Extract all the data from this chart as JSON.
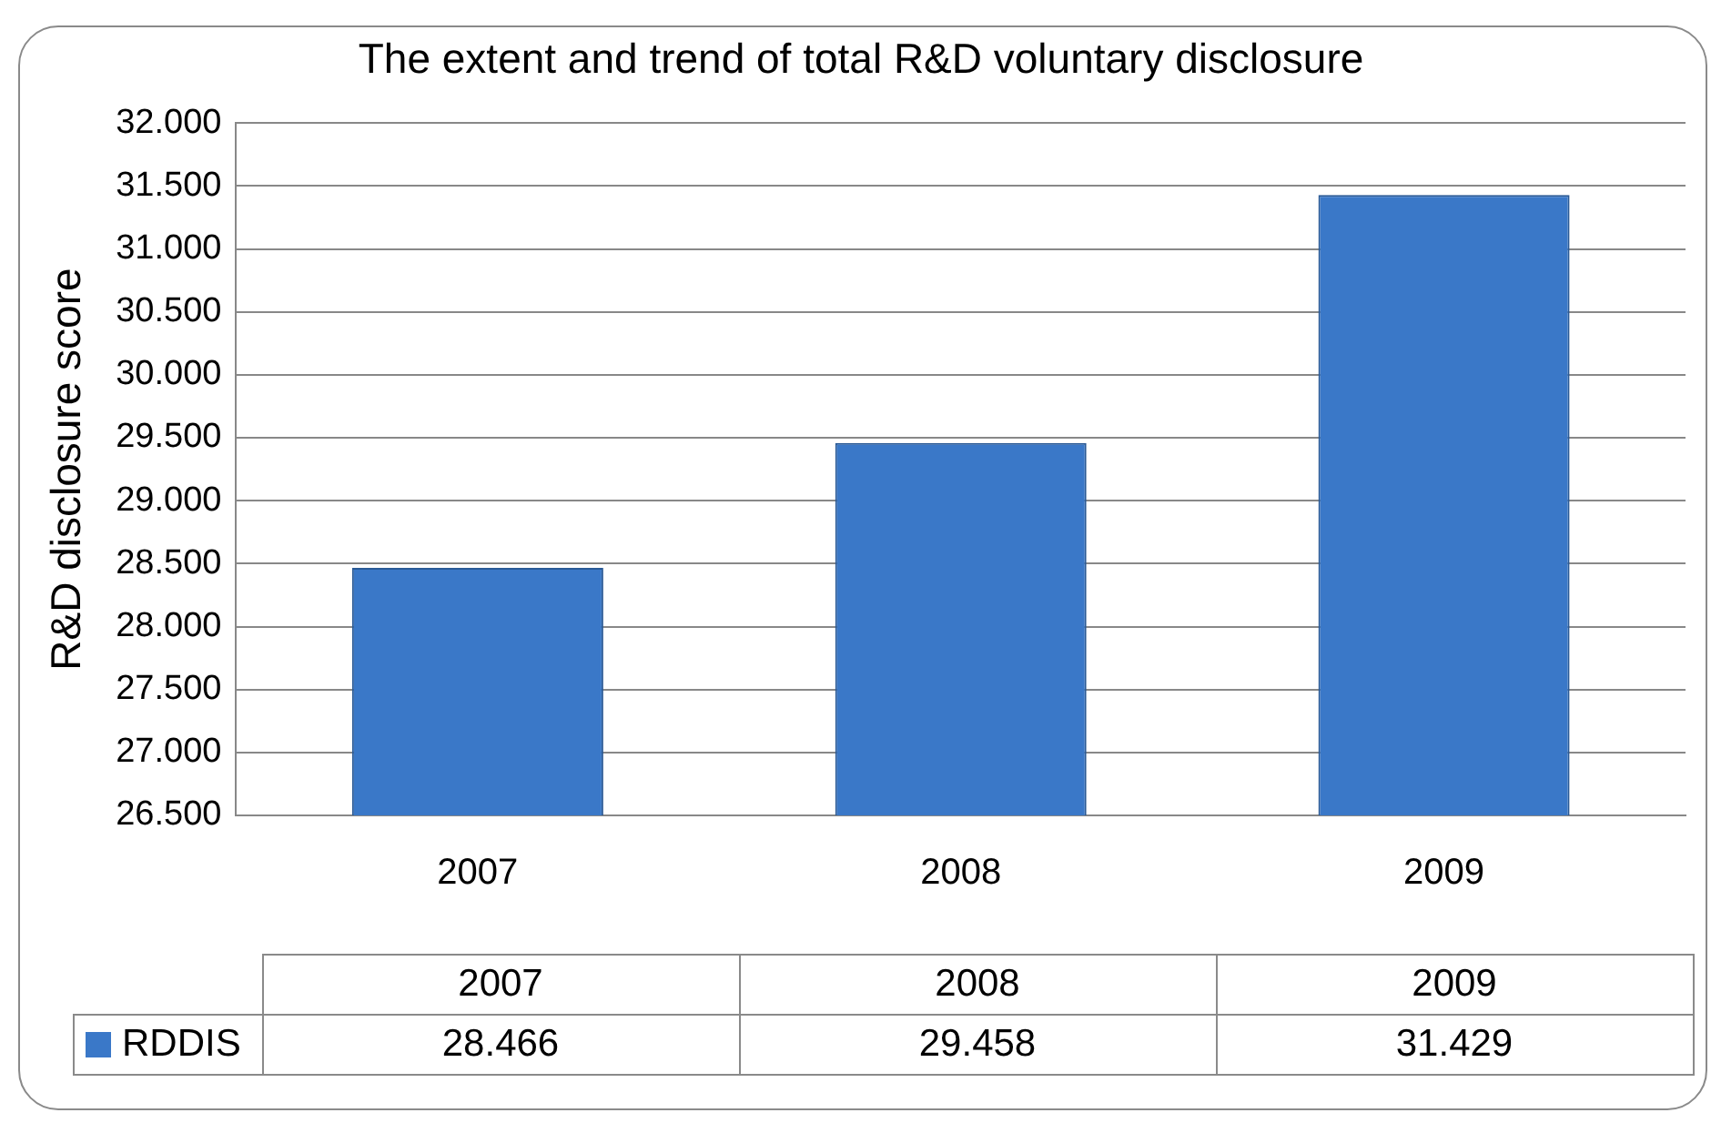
{
  "chart_data": {
    "type": "bar",
    "title": "The extent and trend of total R&D voluntary disclosure",
    "ylabel": "R&D disclosure score",
    "categories": [
      "2007",
      "2008",
      "2009"
    ],
    "series": [
      {
        "name": "RDDIS",
        "color": "#3a78c8",
        "values": [
          28.466,
          29.458,
          31.429
        ]
      }
    ],
    "ylim": [
      26.5,
      32
    ],
    "yticks": [
      {
        "value": 26.5,
        "label": "26.500"
      },
      {
        "value": 27,
        "label": "27.000"
      },
      {
        "value": 27.5,
        "label": "27.500"
      },
      {
        "value": 28,
        "label": "28.000"
      },
      {
        "value": 28.5,
        "label": "28.500"
      },
      {
        "value": 29,
        "label": "29.000"
      },
      {
        "value": 29.5,
        "label": "29.500"
      },
      {
        "value": 30,
        "label": "30.000"
      },
      {
        "value": 30.5,
        "label": "30.500"
      },
      {
        "value": 31,
        "label": "31.000"
      },
      {
        "value": 31.5,
        "label": "31.500"
      },
      {
        "value": 32,
        "label": "32.000"
      }
    ],
    "grid": "y",
    "legend": "bottom",
    "data_labels": true
  }
}
